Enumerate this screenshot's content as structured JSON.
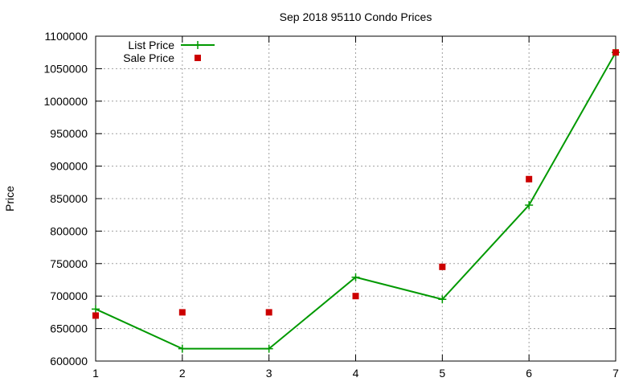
{
  "chart_data": {
    "type": "line",
    "title": "Sep 2018 95110 Condo Prices",
    "xlabel": "",
    "ylabel": "Price",
    "xlim": [
      1,
      7
    ],
    "ylim": [
      600000,
      1100000
    ],
    "xticks": [
      "1",
      "2",
      "3",
      "4",
      "5",
      "6",
      "7"
    ],
    "yticks": [
      "600000",
      "650000",
      "700000",
      "750000",
      "800000",
      "850000",
      "900000",
      "950000",
      "1000000",
      "1050000",
      "1100000"
    ],
    "grid": true,
    "legend_position": "top-left",
    "x": [
      1,
      2,
      3,
      4,
      5,
      6,
      7
    ],
    "series": [
      {
        "name": "List Price",
        "style": "linespoints",
        "marker": "plus",
        "color": "#009900",
        "values": [
          680000,
          619000,
          619000,
          729000,
          695000,
          840000,
          1075000
        ]
      },
      {
        "name": "Sale Price",
        "style": "points",
        "marker": "square",
        "color": "#cc0000",
        "values": [
          670000,
          675000,
          675000,
          700000,
          745000,
          880000,
          1075000
        ]
      }
    ]
  }
}
